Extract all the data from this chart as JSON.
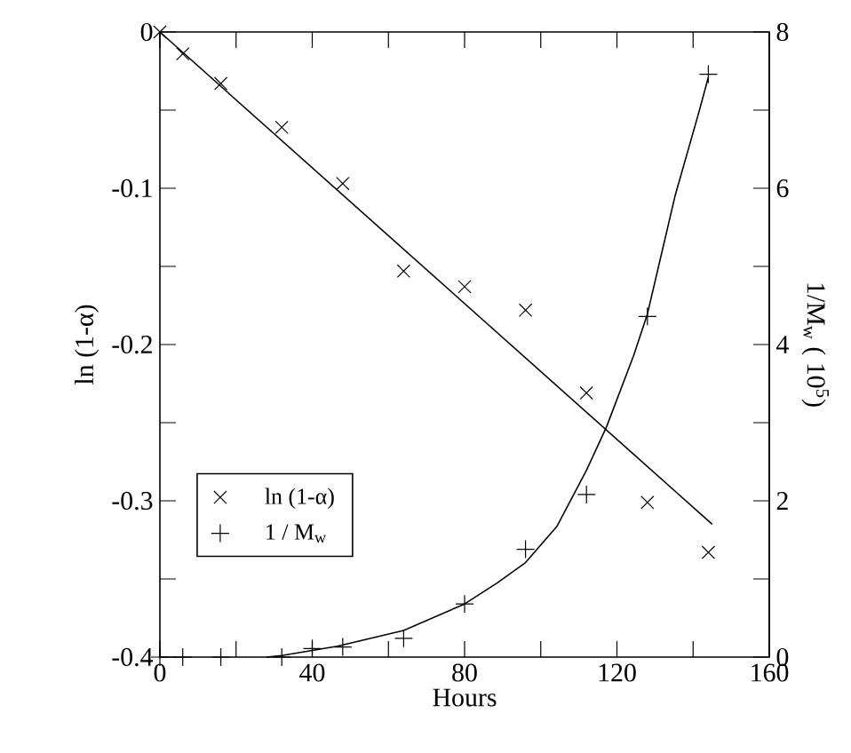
{
  "chart_data": {
    "type": "scatter",
    "xlabel": "Hours",
    "ylabel": "ln (1-α)",
    "y2label": "1/M$_{w}$ ( 10$^{5}$)",
    "xlim": [
      0,
      160
    ],
    "xticks": [
      0,
      {
        "value": 20,
        "label": null
      },
      40,
      {
        "value": 60,
        "label": null
      },
      80,
      {
        "value": 100,
        "label": null
      },
      120,
      {
        "value": 140,
        "label": null
      },
      160
    ],
    "ylim": [
      -0.4,
      0
    ],
    "yticks": [
      -0.4,
      {
        "value": -0.35,
        "label": null
      },
      -0.3,
      {
        "value": -0.25,
        "label": null
      },
      -0.2,
      {
        "value": -0.15,
        "label": null
      },
      -0.1,
      {
        "value": -0.05,
        "label": null
      },
      0
    ],
    "y2lim": [
      0,
      8
    ],
    "y2ticks": [
      0,
      {
        "value": 1,
        "label": null
      },
      2,
      {
        "value": 3,
        "label": null
      },
      4,
      {
        "value": 5,
        "label": null
      },
      6,
      {
        "value": 7,
        "label": null
      },
      8
    ],
    "legend": "bottom left",
    "grid": false,
    "series": [
      {
        "name": "ln (1-α)",
        "type": "scatter",
        "marker": "cross",
        "color": "#000000",
        "axis": "y",
        "x": [
          0,
          6,
          16,
          32,
          48,
          64,
          80,
          96,
          112,
          128,
          144
        ],
        "values": [
          0,
          -0.014,
          -0.033,
          -0.061,
          -0.097,
          -0.153,
          -0.163,
          -0.178,
          -0.231,
          -0.301,
          -0.333
        ]
      },
      {
        "type": "line",
        "color": "#000000",
        "axis": "y",
        "x": [
          0,
          145
        ],
        "values": [
          0,
          -0.315
        ]
      },
      {
        "name": "1 / M$_{w}$",
        "type": "scatter",
        "marker": "plus",
        "color": "#000000",
        "axis": "y2",
        "x": [
          0,
          6,
          16,
          32,
          40,
          48,
          64,
          80,
          96,
          112,
          128,
          144
        ],
        "values": [
          0,
          0,
          0,
          0,
          0.11,
          0.13,
          0.24,
          0.68,
          1.38,
          2.08,
          4.36,
          7.46
        ]
      },
      {
        "type": "line",
        "color": "#000000",
        "axis": "y2",
        "x": [
          28,
          32,
          46.6,
          64,
          80,
          88.6,
          96,
          104.2,
          112,
          117.3,
          124.4,
          128,
          135.3,
          141.5,
          144
        ],
        "values": [
          0,
          0.02,
          0.14,
          0.34,
          0.68,
          0.95,
          1.21,
          1.67,
          2.39,
          2.95,
          3.86,
          4.39,
          5.91,
          6.97,
          7.42
        ]
      }
    ]
  }
}
